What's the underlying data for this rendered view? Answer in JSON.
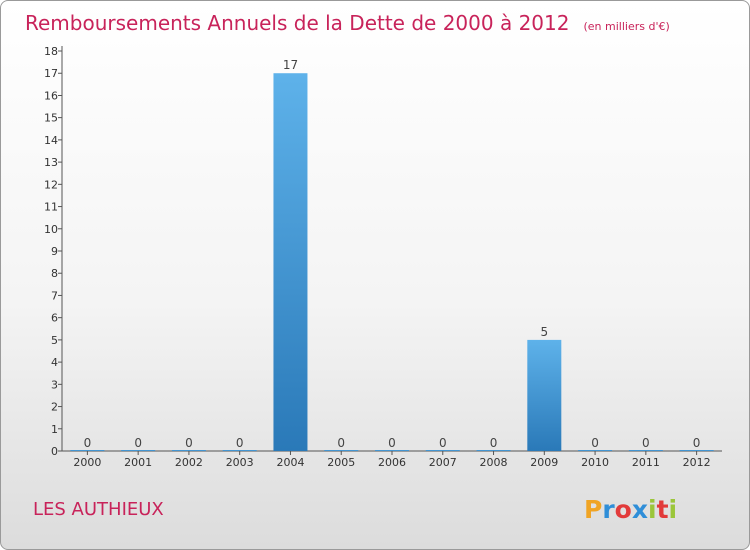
{
  "chart_data": {
    "type": "bar",
    "title": "Remboursements Annuels de la Dette de 2000 à 2012",
    "unit": "(en milliers d'€)",
    "categories": [
      "2000",
      "2001",
      "2002",
      "2003",
      "2004",
      "2005",
      "2006",
      "2007",
      "2008",
      "2009",
      "2010",
      "2011",
      "2012"
    ],
    "values": [
      0,
      0,
      0,
      0,
      17,
      0,
      0,
      0,
      0,
      5,
      0,
      0,
      0
    ],
    "value_labels": [
      "0",
      "0",
      "0",
      "0",
      "17",
      "0",
      "0",
      "0",
      "0",
      "5",
      "0",
      "0",
      "0"
    ],
    "yticks": [
      "0",
      "1",
      "2",
      "3",
      "4",
      "5",
      "6",
      "7",
      "8",
      "9",
      "10",
      "11",
      "12",
      "13",
      "14",
      "15",
      "16",
      "17",
      "18"
    ],
    "ylim": [
      0,
      18
    ],
    "xlabel": "",
    "ylabel": "",
    "grid": false,
    "bar_color_top": "#5eb2ea",
    "bar_color_bottom": "#2a79b8"
  },
  "commune_name": "LES AUTHIEUX",
  "logo": {
    "letters": [
      "P",
      "r",
      "o",
      "x",
      "i",
      "t",
      "i"
    ],
    "colors": [
      "#f0a424",
      "#2f8ed8",
      "#e23b3b",
      "#2f8ed8",
      "#9bc63a",
      "#e23b3b",
      "#9bc63a"
    ]
  },
  "colors": {
    "title": "#c8235a",
    "axis": "#555555"
  }
}
